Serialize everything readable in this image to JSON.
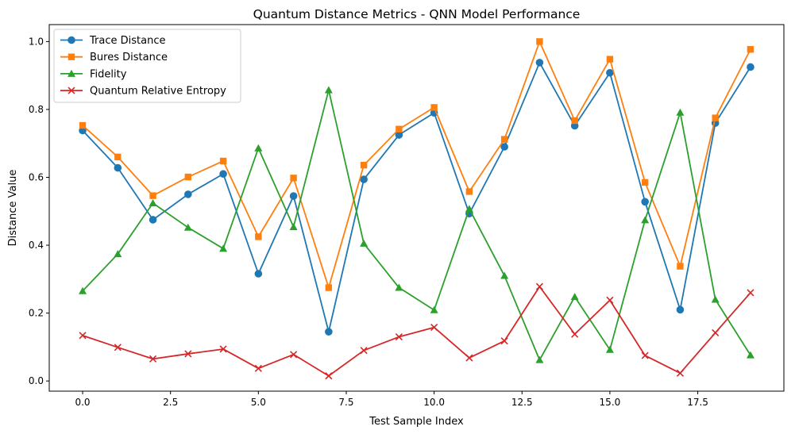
{
  "chart_data": {
    "type": "line",
    "title": "Quantum Distance Metrics - QNN Model Performance",
    "xlabel": "Test Sample Index",
    "ylabel": "Distance Value",
    "xlim": [
      -0.95,
      19.95
    ],
    "ylim": [
      -0.03,
      1.05
    ],
    "xticks": [
      0,
      2.5,
      5,
      7.5,
      10,
      12.5,
      15,
      17.5
    ],
    "xtick_labels": [
      "0.0",
      "2.5",
      "5.0",
      "7.5",
      "10.0",
      "12.5",
      "15.0",
      "17.5"
    ],
    "yticks": [
      0,
      0.2,
      0.4,
      0.6,
      0.8,
      1.0
    ],
    "ytick_labels": [
      "0.0",
      "0.2",
      "0.4",
      "0.6",
      "0.8",
      "1.0"
    ],
    "grid": false,
    "legend_position": "top-left",
    "x": [
      0,
      1,
      2,
      3,
      4,
      5,
      6,
      7,
      8,
      9,
      10,
      11,
      12,
      13,
      14,
      15,
      16,
      17,
      18,
      19
    ],
    "series": [
      {
        "name": "Trace Distance",
        "color": "#1f77b4",
        "marker": "circle",
        "values": [
          0.738,
          0.628,
          0.475,
          0.55,
          0.61,
          0.316,
          0.545,
          0.145,
          0.594,
          0.725,
          0.79,
          0.493,
          0.69,
          0.938,
          0.752,
          0.908,
          0.528,
          0.21,
          0.76,
          0.925
        ]
      },
      {
        "name": "Bures Distance",
        "color": "#ff7f0e",
        "marker": "square",
        "values": [
          0.753,
          0.66,
          0.546,
          0.601,
          0.648,
          0.425,
          0.598,
          0.275,
          0.636,
          0.742,
          0.806,
          0.558,
          0.712,
          1.0,
          0.767,
          0.948,
          0.585,
          0.338,
          0.775,
          0.977
        ]
      },
      {
        "name": "Fidelity",
        "color": "#2ca02c",
        "marker": "triangle",
        "values": [
          0.265,
          0.374,
          0.524,
          0.452,
          0.39,
          0.686,
          0.454,
          0.857,
          0.405,
          0.275,
          0.209,
          0.507,
          0.31,
          0.062,
          0.248,
          0.092,
          0.474,
          0.791,
          0.24,
          0.076
        ]
      },
      {
        "name": "Quantum Relative Entropy",
        "color": "#d62728",
        "marker": "x",
        "values": [
          0.134,
          0.099,
          0.065,
          0.08,
          0.094,
          0.037,
          0.078,
          0.015,
          0.09,
          0.13,
          0.158,
          0.068,
          0.118,
          0.278,
          0.138,
          0.238,
          0.075,
          0.023,
          0.142,
          0.26
        ]
      }
    ]
  }
}
